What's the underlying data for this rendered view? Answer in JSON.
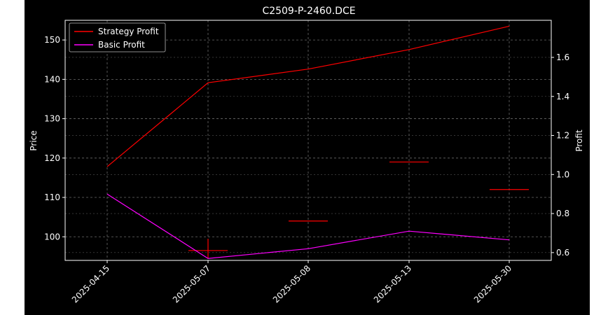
{
  "chart_data": {
    "type": "line",
    "title": "C2509-P-2460.DCE",
    "x_categories": [
      "2025-04-15",
      "2025-05-07",
      "2025-05-08",
      "2025-05-13",
      "2025-05-30"
    ],
    "left_axis": {
      "label": "Price",
      "ticks": [
        100,
        110,
        120,
        130,
        140,
        150
      ],
      "ylim": [
        94,
        155
      ]
    },
    "right_axis": {
      "label": "Profit",
      "ticks": [
        "0.6",
        "0.8",
        "1.0",
        "1.2",
        "1.4",
        "1.6"
      ],
      "ylim": [
        0.56,
        1.79
      ]
    },
    "price_candles": [
      {
        "x": "2025-05-07",
        "open": 96.5,
        "close": 96.5,
        "high": 99.5,
        "low": 94.5
      },
      {
        "x": "2025-05-08",
        "open": 104,
        "close": 104,
        "high": 104,
        "low": 104
      },
      {
        "x": "2025-05-13",
        "open": 119,
        "close": 119,
        "high": 119,
        "low": 119
      },
      {
        "x": "2025-05-30",
        "open": 112,
        "close": 112,
        "high": 112,
        "low": 112
      }
    ],
    "series": [
      {
        "name": "Strategy Profit",
        "color": "#ff0000",
        "axis": "right",
        "values": [
          1.04,
          1.47,
          1.54,
          1.64,
          1.76
        ]
      },
      {
        "name": "Basic Profit",
        "color": "#ff00ff",
        "axis": "right",
        "values": [
          0.9,
          0.57,
          0.62,
          0.71,
          0.665
        ]
      }
    ],
    "grid": true,
    "legend_position": "upper-left"
  }
}
